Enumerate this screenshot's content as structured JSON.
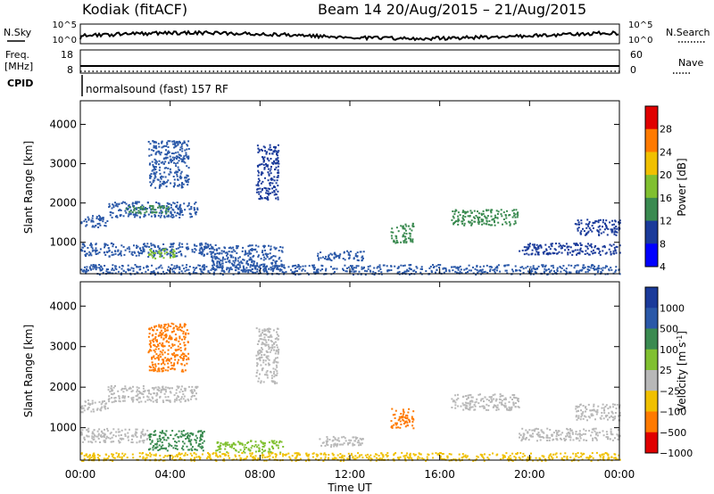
{
  "header": {
    "station": "Kodiak (fitACF)",
    "beam_range": "Beam 14 20/Aug/2015 – 21/Aug/2015"
  },
  "meta_panels": {
    "nsky_label": "N.Sky",
    "nsky_ticks": [
      "10^5",
      "10^0"
    ],
    "nsearch_label": "N.Search",
    "nsearch_ticks": [
      "10^5",
      "10^0"
    ],
    "freq_label_1": "Freq.",
    "freq_label_2": "[MHz]",
    "freq_ticks": [
      "18",
      "8"
    ],
    "nave_label": "Nave",
    "nave_ticks": [
      "60",
      "0"
    ],
    "cpid_label": "CPID",
    "cpid_text": "normalsound (fast) 157 RF"
  },
  "chart_data": [
    {
      "type": "heatmap",
      "name": "power-panel",
      "ylabel": "Slant Range [km]",
      "yticks": [
        1000,
        2000,
        3000,
        4000
      ],
      "ylim": [
        200,
        4600
      ],
      "xlim": [
        0,
        24
      ],
      "colorbar": {
        "label": "Power [dB]",
        "ticks": [
          "28",
          "24",
          "20",
          "16",
          "12",
          "8",
          "4"
        ],
        "colors": [
          "#e00000",
          "#ff7a00",
          "#f0c000",
          "#80c030",
          "#3a8a50",
          "#1a3a9a",
          "#0000ff"
        ]
      },
      "echo_regions": [
        {
          "t0": 0.0,
          "t1": 1.2,
          "r0": 1400,
          "r1": 1700,
          "color": "#2a58a8"
        },
        {
          "t0": 1.2,
          "t1": 5.2,
          "r0": 1650,
          "r1": 2050,
          "color": "#2a58a8"
        },
        {
          "t0": 2.0,
          "t1": 4.0,
          "r0": 1750,
          "r1": 1950,
          "color": "#3a8a50"
        },
        {
          "t0": 0.0,
          "t1": 6.0,
          "r0": 650,
          "r1": 1000,
          "color": "#2a58a8"
        },
        {
          "t0": 3.0,
          "t1": 4.2,
          "r0": 600,
          "r1": 850,
          "color": "#80c030"
        },
        {
          "t0": 3.0,
          "t1": 4.8,
          "r0": 2400,
          "r1": 3600,
          "color": "#2a58a8"
        },
        {
          "t0": 5.8,
          "t1": 9.0,
          "r0": 300,
          "r1": 950,
          "color": "#2a58a8"
        },
        {
          "t0": 7.8,
          "t1": 8.8,
          "r0": 2100,
          "r1": 3500,
          "color": "#1a3a9a"
        },
        {
          "t0": 10.5,
          "t1": 12.6,
          "r0": 550,
          "r1": 800,
          "color": "#2a58a8"
        },
        {
          "t0": 13.8,
          "t1": 14.8,
          "r0": 1000,
          "r1": 1500,
          "color": "#3a8a50"
        },
        {
          "t0": 16.5,
          "t1": 19.5,
          "r0": 1450,
          "r1": 1850,
          "color": "#3a8a50"
        },
        {
          "t0": 19.5,
          "t1": 24.0,
          "r0": 700,
          "r1": 1000,
          "color": "#1a3a9a"
        },
        {
          "t0": 22.0,
          "t1": 24.0,
          "r0": 1200,
          "r1": 1600,
          "color": "#1a3a9a"
        },
        {
          "t0": 0.0,
          "t1": 24.0,
          "r0": 200,
          "r1": 450,
          "color": "#2a58a8"
        }
      ]
    },
    {
      "type": "heatmap",
      "name": "velocity-panel",
      "ylabel": "Slant Range [km]",
      "yticks": [
        1000,
        2000,
        3000,
        4000
      ],
      "ylim": [
        200,
        4600
      ],
      "xlim": [
        0,
        24
      ],
      "xlabel": "Time UT",
      "xticks": [
        "00:00",
        "04:00",
        "08:00",
        "12:00",
        "16:00",
        "20:00",
        "00:00"
      ],
      "colorbar": {
        "label": "Velocity [m s^-1]",
        "ticks": [
          "1000",
          "500",
          "100",
          "25",
          "−25",
          "−100",
          "−500",
          "−1000"
        ],
        "colors": [
          "#1a3a9a",
          "#2a58a8",
          "#3a8a50",
          "#80c030",
          "#b8b8b8",
          "#f0c000",
          "#ff7a00",
          "#e00000"
        ]
      },
      "echo_regions": [
        {
          "t0": 0.0,
          "t1": 1.2,
          "r0": 1400,
          "r1": 1700,
          "color": "#b8b8b8"
        },
        {
          "t0": 1.2,
          "t1": 5.2,
          "r0": 1650,
          "r1": 2050,
          "color": "#b8b8b8"
        },
        {
          "t0": 0.0,
          "t1": 3.0,
          "r0": 650,
          "r1": 1000,
          "color": "#b8b8b8"
        },
        {
          "t0": 3.0,
          "t1": 5.5,
          "r0": 450,
          "r1": 950,
          "color": "#3a8a50"
        },
        {
          "t0": 3.0,
          "t1": 4.8,
          "r0": 2400,
          "r1": 3600,
          "color": "#ff7a00"
        },
        {
          "t0": 6.0,
          "t1": 9.0,
          "r0": 400,
          "r1": 700,
          "color": "#80c030"
        },
        {
          "t0": 7.8,
          "t1": 8.8,
          "r0": 2100,
          "r1": 3500,
          "color": "#b8b8b8"
        },
        {
          "t0": 10.5,
          "t1": 12.6,
          "r0": 550,
          "r1": 800,
          "color": "#b8b8b8"
        },
        {
          "t0": 13.8,
          "t1": 14.8,
          "r0": 1000,
          "r1": 1500,
          "color": "#ff7a00"
        },
        {
          "t0": 16.5,
          "t1": 19.5,
          "r0": 1450,
          "r1": 1850,
          "color": "#b8b8b8"
        },
        {
          "t0": 19.5,
          "t1": 24.0,
          "r0": 700,
          "r1": 1000,
          "color": "#b8b8b8"
        },
        {
          "t0": 22.0,
          "t1": 24.0,
          "r0": 1200,
          "r1": 1600,
          "color": "#b8b8b8"
        },
        {
          "t0": 0.0,
          "t1": 24.0,
          "r0": 200,
          "r1": 400,
          "color": "#f0c000"
        }
      ]
    }
  ]
}
